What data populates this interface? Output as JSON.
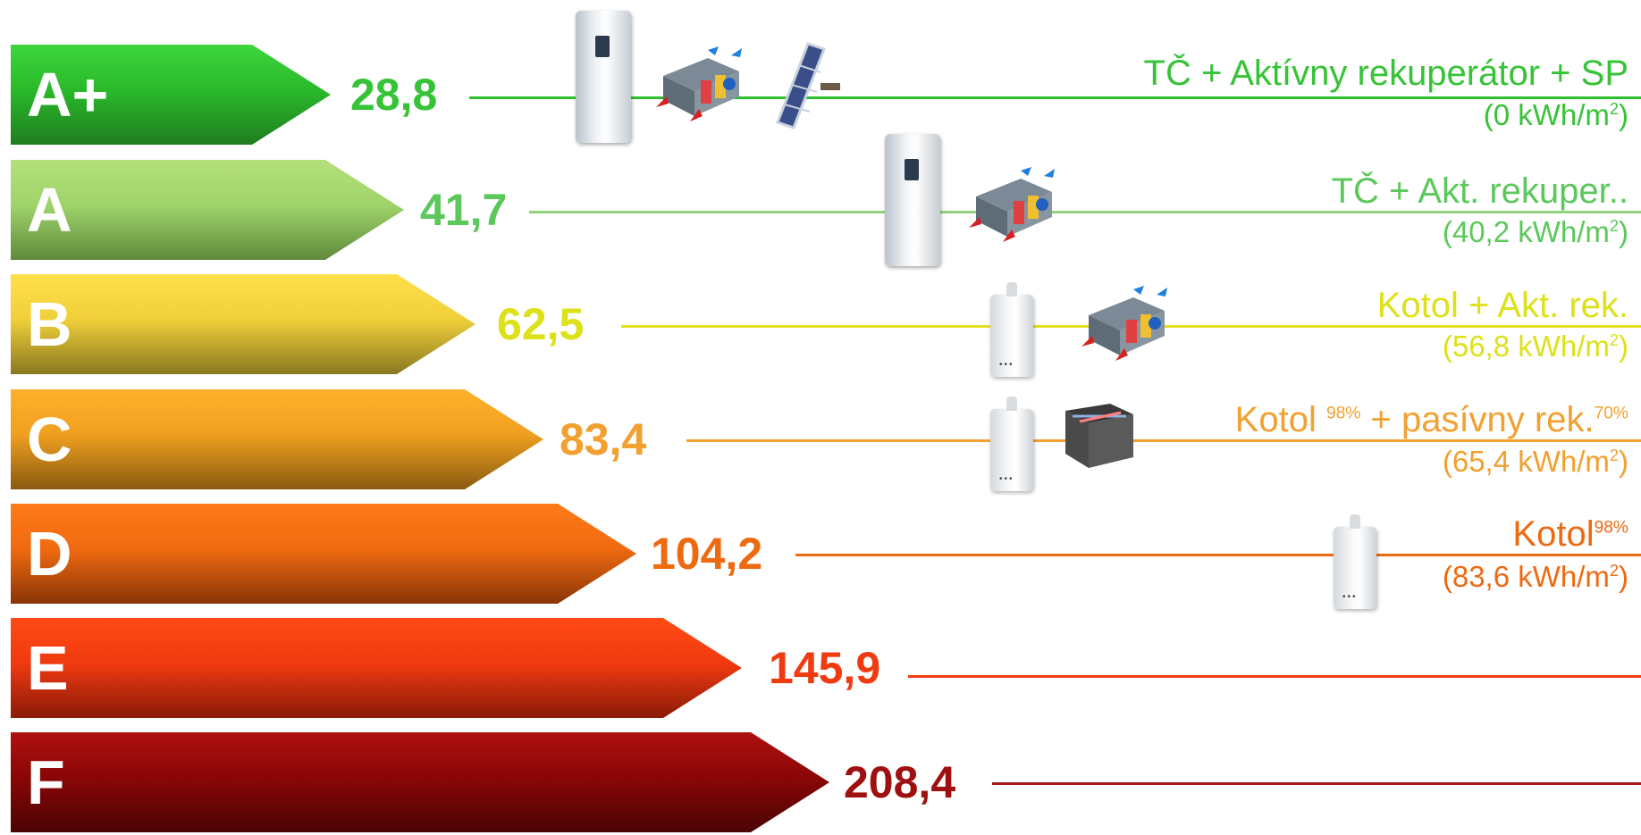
{
  "rows": [
    {
      "class": "A+",
      "value": "28,8",
      "label": "TČ + Aktívny  rekuperátor + SP",
      "sub_pre": "(0 kWh/m",
      "sub_exp": "2",
      "sub_post": ")",
      "colors": {
        "text": "#37c337",
        "line": "#2ec02e",
        "arrow_from": "#1f7d1f",
        "arrow_mid": "#2ab92a",
        "arrow_to": "#3dd63d"
      },
      "devices": [
        "heat-pump",
        "recuperator",
        "solar-panel"
      ]
    },
    {
      "class": "A",
      "value": "41,7",
      "label": "TČ + Akt. rekuper..",
      "sub_pre": "(40,2 kWh/m",
      "sub_exp": "2",
      "sub_post": ")",
      "colors": {
        "text": "#5cc85c",
        "line": "#8fd47a",
        "arrow_from": "#5f8a3c",
        "arrow_mid": "#9fd46a",
        "arrow_to": "#b4e07a"
      },
      "devices": [
        "heat-pump",
        "recuperator"
      ]
    },
    {
      "class": "B",
      "value": "62,5",
      "label": "Kotol + Akt. rek.",
      "sub_pre": "(56,8 kWh/m",
      "sub_exp": "2",
      "sub_post": ")",
      "colors": {
        "text": "#dde11a",
        "line": "#e3e020",
        "arrow_from": "#8a7820",
        "arrow_mid": "#f0d03a",
        "arrow_to": "#ffe04a"
      },
      "devices": [
        "boiler",
        "recuperator"
      ]
    },
    {
      "class": "C",
      "value": "83,4",
      "label_pre": "Kotol ",
      "label_sup1": "98%",
      "label_mid": " + pasívny  rek.",
      "label_sup2": "70%",
      "sub_pre": "(65,4 kWh/m",
      "sub_exp": "2",
      "sub_post": ")",
      "colors": {
        "text": "#f2a030",
        "line": "#f3a030",
        "arrow_from": "#8a5a10",
        "arrow_mid": "#f0a020",
        "arrow_to": "#ffb02a"
      },
      "devices": [
        "boiler",
        "passive-box"
      ]
    },
    {
      "class": "D",
      "value": "104,2",
      "label_pre": "Kotol",
      "label_sup1": "98%",
      "sub_pre": "(83,6 kWh/m",
      "sub_exp": "2",
      "sub_post": ")",
      "colors": {
        "text": "#ee6a10",
        "line": "#ee6a10",
        "arrow_from": "#8a3508",
        "arrow_mid": "#f06a10",
        "arrow_to": "#ff7a18"
      },
      "devices": [
        "boiler"
      ]
    },
    {
      "class": "E",
      "value": "145,9",
      "colors": {
        "text": "#f03a10",
        "line": "#f03a10",
        "arrow_from": "#8a1a08",
        "arrow_mid": "#f03a10",
        "arrow_to": "#ff4a14"
      },
      "devices": []
    },
    {
      "class": "F",
      "value": "208,4",
      "colors": {
        "text": "#a01010",
        "line": "#a01818",
        "arrow_from": "#4a0404",
        "arrow_mid": "#8a0606",
        "arrow_to": "#b01010"
      },
      "devices": []
    }
  ]
}
